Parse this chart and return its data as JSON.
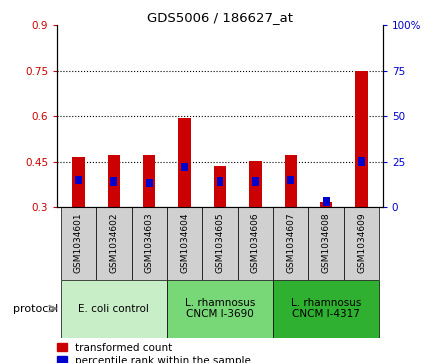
{
  "title": "GDS5006 / 186627_at",
  "samples": [
    "GSM1034601",
    "GSM1034602",
    "GSM1034603",
    "GSM1034604",
    "GSM1034605",
    "GSM1034606",
    "GSM1034607",
    "GSM1034608",
    "GSM1034609"
  ],
  "red_values": [
    0.465,
    0.473,
    0.47,
    0.595,
    0.435,
    0.453,
    0.472,
    0.315,
    0.748
  ],
  "blue_values": [
    15,
    14,
    13,
    22,
    14,
    14,
    15,
    3,
    25
  ],
  "ylim_left": [
    0.3,
    0.9
  ],
  "ylim_right": [
    0,
    100
  ],
  "yticks_left": [
    0.3,
    0.45,
    0.6,
    0.75,
    0.9
  ],
  "yticks_right": [
    0,
    25,
    50,
    75,
    100
  ],
  "ytick_labels_left": [
    "0.3",
    "0.45",
    "0.6",
    "0.75",
    "0.9"
  ],
  "ytick_labels_right": [
    "0",
    "25",
    "50",
    "75",
    "100%"
  ],
  "groups": [
    {
      "label": "E. coli control",
      "start": 0,
      "end": 3,
      "color": "#c8eec8"
    },
    {
      "label": "L. rhamnosus\nCNCM I-3690",
      "start": 3,
      "end": 6,
      "color": "#78d878"
    },
    {
      "label": "L. rhamnosus\nCNCM I-4317",
      "start": 6,
      "end": 9,
      "color": "#30b030"
    }
  ],
  "protocol_label": "protocol",
  "red_color": "#cc0000",
  "blue_color": "#0000cc",
  "bar_width": 0.35,
  "bar_bottom": 0.3,
  "legend_red": "transformed count",
  "legend_blue": "percentile rank within the sample"
}
